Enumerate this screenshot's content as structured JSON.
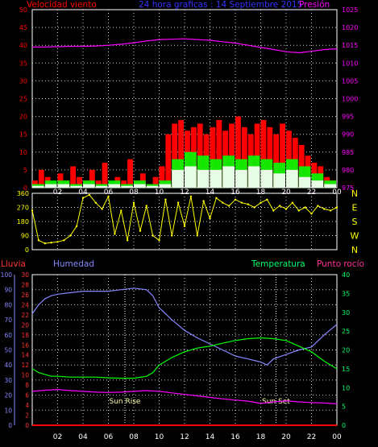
{
  "header": {
    "left": "Velocidad viento",
    "center": "24 hora graficas : 14 Septiembre 2015",
    "right": "Presión"
  },
  "colors": {
    "red": "#ff0000",
    "blue": "#0000ff",
    "magenta": "#ff00ff",
    "white": "#ffffff",
    "green": "#00ff00",
    "yellow": "#ffff00",
    "lightgreen": "#00ff66",
    "slate": "#8888ff",
    "grid": "#cfcfcf"
  },
  "time_ticks": [
    "02",
    "04",
    "06",
    "08",
    "10",
    "12",
    "14",
    "16",
    "18",
    "20",
    "22",
    "00"
  ],
  "chart_data": [
    {
      "type": "line",
      "title": "Velocidad viento / Presión",
      "left_axis": {
        "label": "Velocidad viento",
        "range": [
          0,
          50
        ],
        "ticks": [
          0,
          5,
          10,
          15,
          20,
          25,
          30,
          35,
          40,
          45,
          50
        ]
      },
      "right_axis": {
        "label": "Presión",
        "range": [
          975,
          1025
        ],
        "ticks": [
          975,
          980,
          985,
          990,
          995,
          1000,
          1005,
          1010,
          1015,
          1020,
          1025
        ]
      },
      "series": [
        {
          "name": "Presión",
          "axis": "right",
          "color": "magenta",
          "x": [
            0,
            1,
            2,
            3,
            4,
            5,
            6,
            7,
            8,
            9,
            10,
            11,
            12,
            13,
            14,
            15,
            16,
            17,
            18,
            19,
            20,
            21,
            22,
            23,
            24
          ],
          "y": [
            1014.5,
            1014.5,
            1014.6,
            1014.7,
            1014.7,
            1014.8,
            1015,
            1015.3,
            1015.7,
            1016.2,
            1016.6,
            1016.7,
            1016.8,
            1016.6,
            1016.4,
            1016.0,
            1015.6,
            1015.0,
            1014.4,
            1013.8,
            1013.2,
            1012.9,
            1013.3,
            1013.8,
            1014.0
          ]
        },
        {
          "name": "Racha",
          "axis": "left",
          "color": "red",
          "x": [
            0,
            0.5,
            1,
            1.5,
            2,
            2.5,
            3,
            3.5,
            4,
            4.5,
            5,
            5.5,
            6,
            6.5,
            7,
            7.5,
            8,
            8.5,
            9,
            9.5,
            10,
            10.5,
            11,
            11.5,
            12,
            12.5,
            13,
            13.5,
            14,
            14.5,
            15,
            15.5,
            16,
            16.5,
            17,
            17.5,
            18,
            18.5,
            19,
            19.5,
            20,
            20.5,
            21,
            21.5,
            22,
            22.5,
            23,
            23.5,
            24
          ],
          "y": [
            2,
            5,
            3,
            1,
            4,
            2,
            6,
            3,
            2,
            5,
            2,
            7,
            1,
            3,
            2,
            8,
            2,
            4,
            1,
            3,
            6,
            15,
            18,
            19,
            16,
            17,
            18,
            15,
            17,
            19,
            16,
            18,
            20,
            17,
            15,
            18,
            19,
            17,
            15,
            18,
            16,
            14,
            12,
            9,
            7,
            6,
            3,
            2,
            4
          ]
        },
        {
          "name": "Media",
          "axis": "left",
          "color": "green",
          "x": [
            0,
            1,
            2,
            3,
            4,
            5,
            6,
            7,
            8,
            9,
            10,
            11,
            12,
            13,
            14,
            15,
            16,
            17,
            18,
            19,
            20,
            21,
            22,
            23,
            24
          ],
          "y": [
            1,
            2,
            2,
            1,
            2,
            1,
            2,
            1,
            2,
            1,
            2,
            8,
            10,
            9,
            8,
            9,
            8,
            9,
            8,
            7,
            8,
            6,
            4,
            2,
            1
          ]
        },
        {
          "name": "Dirección media",
          "axis": "left",
          "color": "white",
          "x": [
            0,
            1,
            2,
            3,
            4,
            5,
            6,
            7,
            8,
            9,
            10,
            11,
            12,
            13,
            14,
            15,
            16,
            17,
            18,
            19,
            20,
            21,
            22,
            23,
            24
          ],
          "y": [
            0.5,
            1,
            1,
            0.5,
            1,
            0.5,
            1,
            0.5,
            1,
            0.5,
            1,
            5,
            6,
            5,
            5,
            6,
            5,
            6,
            5,
            4,
            5,
            3,
            2,
            1,
            0.5
          ]
        }
      ]
    },
    {
      "type": "scatter",
      "title": "Dirección viento",
      "left_axis": {
        "range": [
          0,
          360
        ],
        "ticks": [
          0,
          90,
          180,
          270,
          360
        ]
      },
      "right_labels": [
        "N",
        "W",
        "S",
        "E",
        "N"
      ],
      "series": [
        {
          "name": "Dirección",
          "color": "yellow",
          "x": [
            0,
            0.5,
            1,
            1.5,
            2,
            2.5,
            3,
            3.5,
            4,
            4.5,
            5,
            5.5,
            6,
            6.5,
            7,
            7.5,
            8,
            8.5,
            9,
            9.5,
            10,
            10.5,
            11,
            11.5,
            12,
            12.5,
            13,
            13.5,
            14,
            14.5,
            15,
            15.5,
            16,
            16.5,
            17,
            17.5,
            18,
            18.5,
            19,
            19.5,
            20,
            20.5,
            21,
            21.5,
            22,
            22.5,
            23,
            23.5,
            24
          ],
          "y": [
            250,
            60,
            40,
            45,
            50,
            60,
            90,
            150,
            330,
            350,
            300,
            260,
            340,
            100,
            250,
            60,
            300,
            120,
            280,
            90,
            60,
            320,
            90,
            300,
            150,
            340,
            90,
            310,
            200,
            330,
            300,
            280,
            320,
            300,
            290,
            270,
            300,
            320,
            250,
            280,
            260,
            300,
            250,
            270,
            230,
            280,
            260,
            250,
            270
          ]
        }
      ]
    },
    {
      "type": "line",
      "title": "Lluvia / Humedad / Temperatura / Punto rocío",
      "left_axis_outer": {
        "label": "Lluvia",
        "range": [
          0,
          100
        ],
        "ticks": [
          0,
          10,
          20,
          30,
          40,
          50,
          60,
          70,
          80,
          90,
          100
        ]
      },
      "left_axis_inner": {
        "label": "Humedad",
        "range": [
          0,
          30
        ],
        "ticks": [
          0,
          2,
          4,
          6,
          8,
          10,
          12,
          14,
          16,
          18,
          20,
          22,
          24,
          26,
          28,
          30
        ]
      },
      "right_axis": {
        "label": "Temperatura",
        "range": [
          0,
          40
        ],
        "ticks": [
          0,
          5,
          10,
          15,
          20,
          25,
          30,
          35,
          40
        ]
      },
      "right_label_extra": "Punto rocío",
      "annotations": [
        "Sun Rise",
        "Sun Set"
      ],
      "series": [
        {
          "name": "Humedad",
          "axis": "left_outer",
          "color": "slate",
          "x": [
            0,
            0.5,
            1,
            1.5,
            2,
            3,
            4,
            5,
            6,
            7,
            8,
            9,
            9.5,
            10,
            11,
            12,
            13,
            14,
            15,
            16,
            17,
            18,
            18.5,
            19,
            20,
            21,
            22,
            23,
            24
          ],
          "y": [
            74,
            80,
            84,
            86,
            87,
            88,
            89,
            89,
            89,
            90,
            91,
            90,
            86,
            78,
            70,
            63,
            58,
            54,
            50,
            46,
            44,
            42,
            40,
            44,
            47,
            50,
            52,
            60,
            67
          ]
        },
        {
          "name": "Temperatura",
          "axis": "right",
          "color": "green",
          "x": [
            0,
            0.5,
            1,
            1.5,
            2,
            3,
            4,
            5,
            6,
            7,
            8,
            9,
            9.5,
            10,
            11,
            12,
            13,
            14,
            15,
            16,
            17,
            18,
            19,
            20,
            21,
            22,
            23,
            24
          ],
          "y": [
            15,
            14,
            13.5,
            13,
            13,
            12.8,
            12.8,
            12.8,
            12.6,
            12.5,
            12.5,
            13,
            14,
            16,
            18,
            19.5,
            20.5,
            21,
            21.8,
            22.5,
            23.0,
            23.2,
            23.0,
            22.5,
            21.0,
            19.5,
            17,
            15.0
          ]
        },
        {
          "name": "Punto rocío",
          "axis": "right",
          "color": "magenta",
          "x": [
            0,
            1,
            2,
            3,
            4,
            5,
            6,
            7,
            8,
            9,
            10,
            11,
            12,
            13,
            14,
            15,
            16,
            17,
            18,
            19,
            20,
            21,
            22,
            23,
            24
          ],
          "y": [
            9,
            9.3,
            9.5,
            9.2,
            9.0,
            8.8,
            8.7,
            8.8,
            9.0,
            9.2,
            9.0,
            8.6,
            8.2,
            7.8,
            7.4,
            7.0,
            6.7,
            6.4,
            5.8,
            6.2,
            6.5,
            6.2,
            6.0,
            5.9,
            5.7
          ]
        },
        {
          "name": "Lluvia",
          "axis": "left_outer",
          "color": "red",
          "x": [
            0,
            24
          ],
          "y": [
            0,
            0
          ]
        }
      ]
    }
  ]
}
